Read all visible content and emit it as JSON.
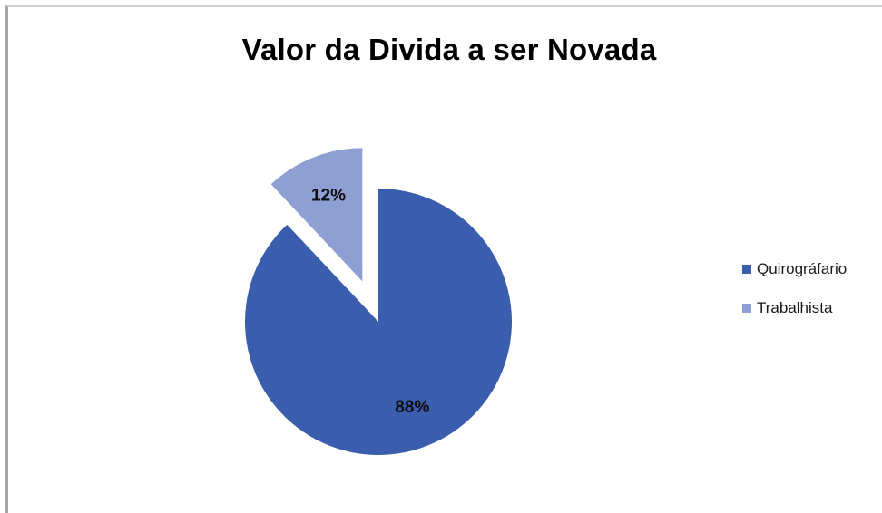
{
  "chart_data": {
    "type": "pie",
    "title": "Valor da Divida a ser Novada",
    "categories": [
      "Quirográfario",
      "Trabalhista"
    ],
    "values": [
      88,
      12
    ],
    "labels": [
      "88%",
      "12%"
    ],
    "colors": [
      "#3A5DAE",
      "#8E9FD4"
    ],
    "exploded": [
      false,
      true
    ],
    "legend_position": "right"
  }
}
